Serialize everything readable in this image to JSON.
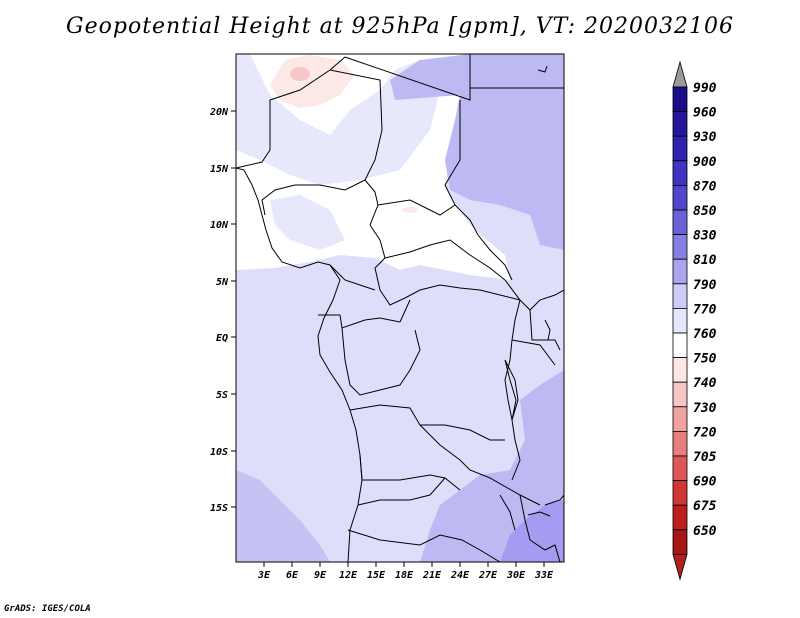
{
  "title": "Geopotential Height at 925hPa [gpm], VT: 2020032106",
  "credit": "GrADS: IGES/COLA",
  "axes": {
    "lat_ticks": [
      "20N",
      "15N",
      "10N",
      "5N",
      "EQ",
      "5S",
      "10S",
      "15S"
    ],
    "lon_ticks": [
      "3E",
      "6E",
      "9E",
      "12E",
      "15E",
      "18E",
      "21E",
      "24E",
      "27E",
      "30E",
      "33E"
    ]
  },
  "map_data": {
    "lon_range": [
      0,
      35
    ],
    "lat_range": [
      -20,
      25
    ],
    "dominant_values_gpm": {
      "north_sahel": 770,
      "equatorial_center": 790,
      "east_highlands": 810,
      "south_plateau": 810,
      "southeast_max": 830,
      "north_min": 750
    }
  },
  "colorbar": {
    "levels": [
      "990",
      "960",
      "930",
      "900",
      "870",
      "850",
      "830",
      "810",
      "790",
      "770",
      "760",
      "750",
      "740",
      "730",
      "720",
      "705",
      "690",
      "675",
      "650"
    ],
    "colors": [
      "#1a0d8a",
      "#23169a",
      "#2f22ad",
      "#3e34bf",
      "#5147cc",
      "#6a62d9",
      "#8780e4",
      "#aaa6ee",
      "#cdcbf7",
      "#e6e6fc",
      "#ffffff",
      "#fce6e6",
      "#f7c6c6",
      "#f0a2a2",
      "#e87e7e",
      "#de5858",
      "#d03636",
      "#bc2020",
      "#a51515"
    ],
    "top_arrow_color": "#9a9a9a",
    "bottom_arrow_color": "#b3201e"
  }
}
